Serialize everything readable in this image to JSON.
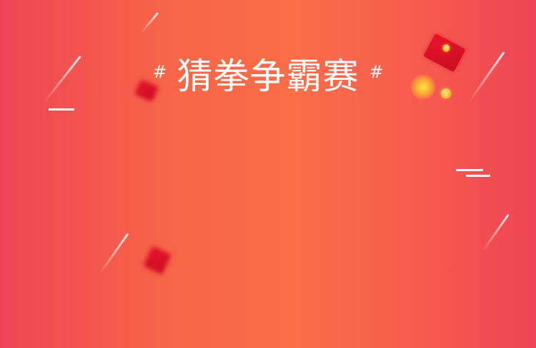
{
  "title": {
    "left_hash": "#",
    "text": "猜拳争霸赛",
    "right_hash": "#"
  },
  "colors": {
    "background_edge": "#ef4456",
    "background_center": "#fb6e48",
    "title_text": "#ffffff",
    "envelope": "#e9132b"
  },
  "decorations": {
    "streak_icons": [
      "meteor-streak-icon",
      "meteor-streak-icon",
      "meteor-streak-icon",
      "meteor-streak-icon",
      "meteor-streak-icon",
      "meteor-streak-icon"
    ],
    "envelope_icons": [
      "red-envelope-icon",
      "red-envelope-icon",
      "red-envelope-icon"
    ],
    "coin_icon": "gold-coin-icon"
  }
}
